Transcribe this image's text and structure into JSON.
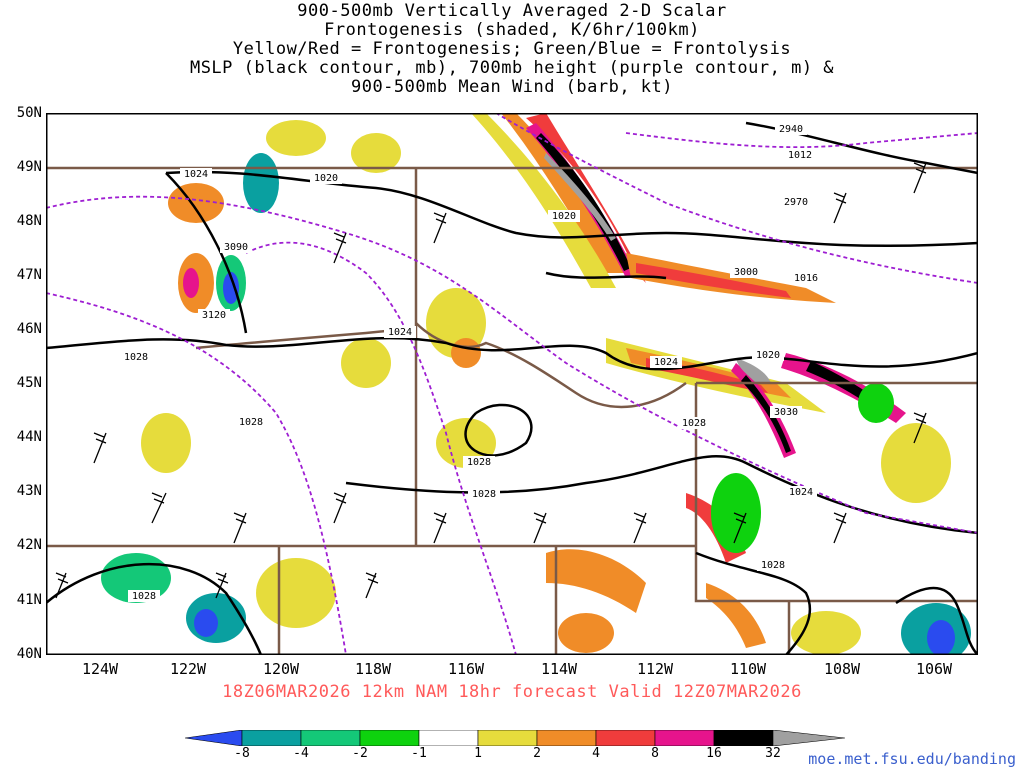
{
  "title_lines": [
    "900-500mb Vertically Averaged 2-D Scalar",
    "Frontogenesis (shaded, K/6hr/100km)",
    "Yellow/Red = Frontogenesis;  Green/Blue = Frontolysis",
    "MSLP (black contour, mb), 700mb height (purple contour, m) &",
    "900-500mb Mean Wind (barb, kt)"
  ],
  "latitude_labels": [
    "50N",
    "49N",
    "48N",
    "47N",
    "46N",
    "45N",
    "44N",
    "43N",
    "42N",
    "41N",
    "40N"
  ],
  "longitude_labels": [
    "124W",
    "122W",
    "120W",
    "118W",
    "116W",
    "114W",
    "112W",
    "110W",
    "108W",
    "106W"
  ],
  "forecast_line": "18Z06MAR2026 12km NAM 18hr forecast Valid 12Z07MAR2026",
  "colorbar": {
    "ticks": [
      "-8",
      "-4",
      "-2",
      "-1",
      "1",
      "2",
      "4",
      "8",
      "16",
      "32"
    ],
    "colors": [
      "#2a4bef",
      "#0aa0a0",
      "#14c878",
      "#0ed20e",
      "#ffffff",
      "#e6dc3c",
      "#f08c28",
      "#f03c3c",
      "#e6148c",
      "#000000",
      "#a0a0a0"
    ]
  },
  "contour_labels": {
    "mslp": [
      "1024",
      "1020",
      "1020",
      "1012",
      "1016",
      "1024",
      "1020",
      "1024",
      "1028",
      "1028",
      "1028",
      "1028",
      "1024",
      "1028",
      "1028",
      "1028"
    ],
    "height_700mb": [
      "2940",
      "2970",
      "3000",
      "3030",
      "3090",
      "3120"
    ]
  },
  "credit": "moe.met.fsu.edu/banding"
}
